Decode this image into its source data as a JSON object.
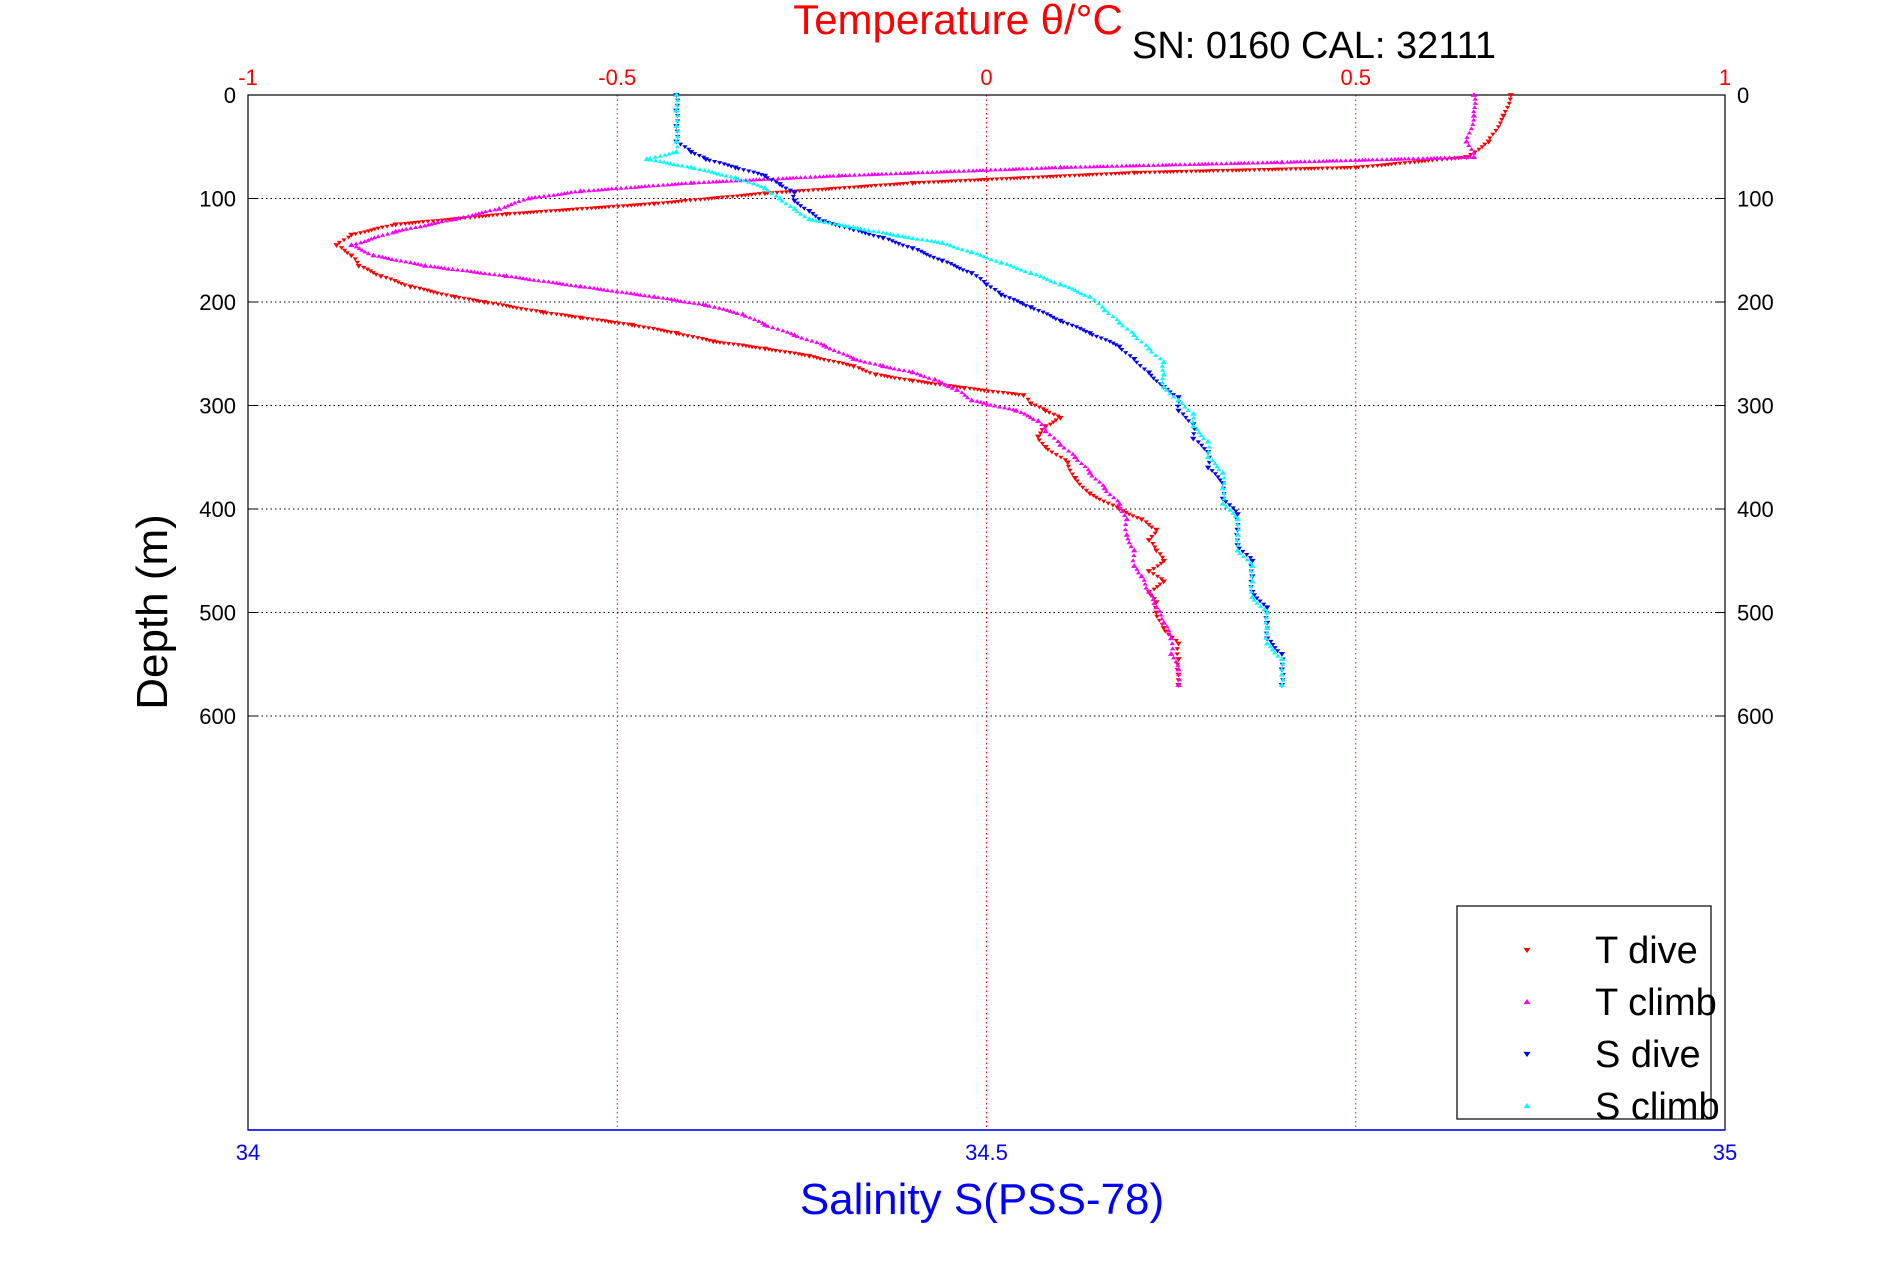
{
  "chart_data": {
    "type": "scatter",
    "title": "Temperature θ/°C",
    "subtitle": "SN: 0160  CAL: 32111",
    "xlabel": "Salinity S(PSS-78)",
    "ylabel": "Depth (m)",
    "x_top": {
      "ticks": [
        "-1",
        "-0.5",
        "0",
        "0.5",
        "1"
      ],
      "values": [
        -1,
        -0.5,
        0,
        0.5,
        1
      ],
      "range": [
        -1,
        1
      ]
    },
    "x_bottom": {
      "ticks": [
        "34",
        "34.5",
        "35"
      ],
      "values": [
        34,
        34.5,
        35
      ],
      "range": [
        34,
        35
      ]
    },
    "y": {
      "ticks": [
        "0",
        "100",
        "200",
        "300",
        "400",
        "500",
        "600"
      ],
      "values": [
        0,
        100,
        200,
        300,
        400,
        500,
        600
      ],
      "range": [
        0,
        1000
      ],
      "reversed": true
    },
    "grid": true,
    "legend_position": "bottom-right",
    "series": [
      {
        "name": "T dive",
        "color": "#ff0000",
        "marker": "triangle-down",
        "axis": "top",
        "points": [
          [
            0.71,
            0
          ],
          [
            0.7,
            20
          ],
          [
            0.68,
            45
          ],
          [
            0.65,
            60
          ],
          [
            0.5,
            70
          ],
          [
            0.2,
            75
          ],
          [
            -0.1,
            85
          ],
          [
            -0.3,
            95
          ],
          [
            -0.45,
            105
          ],
          [
            -0.65,
            115
          ],
          [
            -0.8,
            125
          ],
          [
            -0.86,
            135
          ],
          [
            -0.88,
            145
          ],
          [
            -0.86,
            155
          ],
          [
            -0.85,
            165
          ],
          [
            -0.82,
            175
          ],
          [
            -0.78,
            185
          ],
          [
            -0.72,
            195
          ],
          [
            -0.68,
            200
          ],
          [
            -0.6,
            210
          ],
          [
            -0.55,
            215
          ],
          [
            -0.48,
            222
          ],
          [
            -0.42,
            230
          ],
          [
            -0.37,
            238
          ],
          [
            -0.3,
            245
          ],
          [
            -0.24,
            252
          ],
          [
            -0.18,
            262
          ],
          [
            -0.15,
            270
          ],
          [
            -0.1,
            276
          ],
          [
            -0.03,
            283
          ],
          [
            0.05,
            290
          ],
          [
            0.06,
            298
          ],
          [
            0.08,
            305
          ],
          [
            0.1,
            312
          ],
          [
            0.08,
            320
          ],
          [
            0.07,
            330
          ],
          [
            0.08,
            340
          ],
          [
            0.11,
            355
          ],
          [
            0.12,
            370
          ],
          [
            0.14,
            385
          ],
          [
            0.18,
            400
          ],
          [
            0.21,
            410
          ],
          [
            0.23,
            420
          ],
          [
            0.22,
            430
          ],
          [
            0.23,
            440
          ],
          [
            0.24,
            450
          ],
          [
            0.22,
            460
          ],
          [
            0.24,
            470
          ],
          [
            0.22,
            480
          ],
          [
            0.23,
            490
          ],
          [
            0.23,
            500
          ],
          [
            0.24,
            515
          ],
          [
            0.26,
            530
          ],
          [
            0.26,
            545
          ],
          [
            0.26,
            560
          ],
          [
            0.26,
            570
          ]
        ]
      },
      {
        "name": "T climb",
        "color": "#ff00ff",
        "marker": "triangle-up",
        "axis": "top",
        "points": [
          [
            0.66,
            0
          ],
          [
            0.66,
            20
          ],
          [
            0.65,
            45
          ],
          [
            0.66,
            60
          ],
          [
            0.4,
            65
          ],
          [
            0.1,
            70
          ],
          [
            -0.2,
            78
          ],
          [
            -0.4,
            85
          ],
          [
            -0.55,
            93
          ],
          [
            -0.62,
            100
          ],
          [
            -0.66,
            110
          ],
          [
            -0.72,
            120
          ],
          [
            -0.8,
            132
          ],
          [
            -0.86,
            145
          ],
          [
            -0.83,
            155
          ],
          [
            -0.76,
            165
          ],
          [
            -0.65,
            175
          ],
          [
            -0.55,
            185
          ],
          [
            -0.45,
            195
          ],
          [
            -0.38,
            203
          ],
          [
            -0.33,
            212
          ],
          [
            -0.3,
            222
          ],
          [
            -0.26,
            232
          ],
          [
            -0.22,
            242
          ],
          [
            -0.18,
            255
          ],
          [
            -0.14,
            262
          ],
          [
            -0.1,
            268
          ],
          [
            -0.07,
            275
          ],
          [
            -0.04,
            285
          ],
          [
            -0.02,
            295
          ],
          [
            0.04,
            305
          ],
          [
            0.07,
            315
          ],
          [
            0.08,
            325
          ],
          [
            0.1,
            338
          ],
          [
            0.12,
            350
          ],
          [
            0.14,
            365
          ],
          [
            0.16,
            380
          ],
          [
            0.18,
            395
          ],
          [
            0.19,
            410
          ],
          [
            0.19,
            425
          ],
          [
            0.2,
            440
          ],
          [
            0.2,
            455
          ],
          [
            0.21,
            465
          ],
          [
            0.22,
            480
          ],
          [
            0.23,
            495
          ],
          [
            0.24,
            510
          ],
          [
            0.25,
            525
          ],
          [
            0.25,
            540
          ],
          [
            0.26,
            555
          ],
          [
            0.26,
            570
          ]
        ]
      },
      {
        "name": "S dive",
        "color": "#0000ff",
        "marker": "triangle-down",
        "axis": "bottom",
        "points": [
          [
            34.29,
            0
          ],
          [
            34.29,
            15
          ],
          [
            34.29,
            30
          ],
          [
            34.29,
            45
          ],
          [
            34.3,
            55
          ],
          [
            34.31,
            62
          ],
          [
            34.33,
            70
          ],
          [
            34.35,
            78
          ],
          [
            34.36,
            86
          ],
          [
            34.37,
            94
          ],
          [
            34.37,
            102
          ],
          [
            34.38,
            112
          ],
          [
            34.39,
            122
          ],
          [
            34.41,
            130
          ],
          [
            34.43,
            138
          ],
          [
            34.45,
            148
          ],
          [
            34.47,
            160
          ],
          [
            34.49,
            172
          ],
          [
            34.5,
            183
          ],
          [
            34.51,
            193
          ],
          [
            34.53,
            205
          ],
          [
            34.55,
            218
          ],
          [
            34.57,
            230
          ],
          [
            34.59,
            243
          ],
          [
            34.6,
            255
          ],
          [
            34.61,
            268
          ],
          [
            34.62,
            282
          ],
          [
            34.63,
            292
          ],
          [
            34.63,
            305
          ],
          [
            34.64,
            318
          ],
          [
            34.64,
            332
          ],
          [
            34.65,
            345
          ],
          [
            34.65,
            360
          ],
          [
            34.66,
            375
          ],
          [
            34.66,
            390
          ],
          [
            34.67,
            405
          ],
          [
            34.67,
            420
          ],
          [
            34.67,
            435
          ],
          [
            34.68,
            450
          ],
          [
            34.68,
            465
          ],
          [
            34.68,
            480
          ],
          [
            34.69,
            495
          ],
          [
            34.69,
            510
          ],
          [
            34.69,
            525
          ],
          [
            34.7,
            540
          ],
          [
            34.7,
            555
          ],
          [
            34.7,
            570
          ]
        ]
      },
      {
        "name": "S climb",
        "color": "#00ffff",
        "marker": "triangle-up",
        "axis": "bottom",
        "points": [
          [
            34.29,
            0
          ],
          [
            34.29,
            15
          ],
          [
            34.29,
            30
          ],
          [
            34.29,
            45
          ],
          [
            34.29,
            55
          ],
          [
            34.27,
            62
          ],
          [
            34.3,
            70
          ],
          [
            34.33,
            80
          ],
          [
            34.35,
            90
          ],
          [
            34.36,
            100
          ],
          [
            34.37,
            110
          ],
          [
            34.38,
            120
          ],
          [
            34.41,
            128
          ],
          [
            34.44,
            136
          ],
          [
            34.47,
            143
          ],
          [
            34.49,
            152
          ],
          [
            34.51,
            162
          ],
          [
            34.53,
            172
          ],
          [
            34.55,
            183
          ],
          [
            34.57,
            195
          ],
          [
            34.58,
            208
          ],
          [
            34.59,
            220
          ],
          [
            34.6,
            232
          ],
          [
            34.61,
            245
          ],
          [
            34.62,
            258
          ],
          [
            34.62,
            270
          ],
          [
            34.62,
            282
          ],
          [
            34.63,
            295
          ],
          [
            34.64,
            308
          ],
          [
            34.64,
            320
          ],
          [
            34.65,
            335
          ],
          [
            34.65,
            350
          ],
          [
            34.66,
            365
          ],
          [
            34.66,
            380
          ],
          [
            34.66,
            395
          ],
          [
            34.67,
            410
          ],
          [
            34.67,
            425
          ],
          [
            34.67,
            440
          ],
          [
            34.68,
            455
          ],
          [
            34.68,
            470
          ],
          [
            34.68,
            485
          ],
          [
            34.69,
            500
          ],
          [
            34.69,
            515
          ],
          [
            34.69,
            530
          ],
          [
            34.7,
            545
          ],
          [
            34.7,
            560
          ],
          [
            34.7,
            570
          ]
        ]
      }
    ]
  }
}
